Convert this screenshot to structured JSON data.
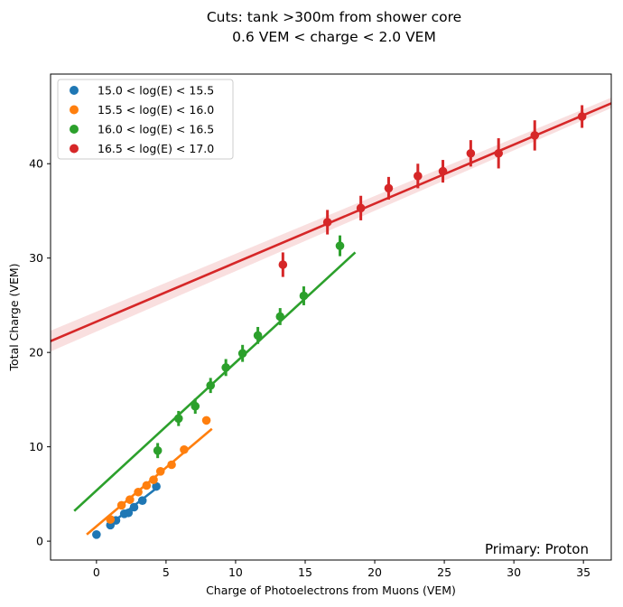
{
  "chart_data": {
    "type": "scatter",
    "title_lines": [
      "Cuts:  tank >300m from shower core",
      "0.6 VEM < charge < 2.0 VEM"
    ],
    "xlabel": "Charge of Photoelectrons from Muons (VEM)",
    "ylabel": "Total Charge (VEM)",
    "xlim": [
      -3.3,
      37
    ],
    "ylim": [
      -2,
      49.5
    ],
    "xticks": [
      0,
      5,
      10,
      15,
      20,
      25,
      30,
      35
    ],
    "yticks": [
      0,
      10,
      20,
      30,
      40
    ],
    "grid": false,
    "legend_position": "top-left",
    "annotation": "Primary: Proton",
    "series": [
      {
        "name": "15.0 < log(E) < 15.5",
        "color": "#1f77b4",
        "points": [
          {
            "x": 0.0,
            "y": 0.7
          },
          {
            "x": 1.0,
            "y": 1.7
          },
          {
            "x": 1.4,
            "y": 2.2
          },
          {
            "x": 2.0,
            "y": 2.9
          },
          {
            "x": 2.3,
            "y": 3.0
          },
          {
            "x": 2.7,
            "y": 3.6
          },
          {
            "x": 3.3,
            "y": 4.3
          },
          {
            "x": 4.3,
            "y": 5.8
          }
        ],
        "fit": {
          "x": [
            0.9,
            4.3
          ],
          "y": [
            1.7,
            5.6
          ]
        }
      },
      {
        "name": "15.5 < log(E) < 16.0",
        "color": "#ff7f0e",
        "points": [
          {
            "x": 1.0,
            "y": 2.3
          },
          {
            "x": 1.8,
            "y": 3.8
          },
          {
            "x": 2.4,
            "y": 4.4
          },
          {
            "x": 3.0,
            "y": 5.2
          },
          {
            "x": 3.6,
            "y": 5.9
          },
          {
            "x": 4.1,
            "y": 6.5
          },
          {
            "x": 4.6,
            "y": 7.4
          },
          {
            "x": 5.4,
            "y": 8.1
          },
          {
            "x": 6.3,
            "y": 9.7
          },
          {
            "x": 7.9,
            "y": 12.8
          }
        ],
        "fit": {
          "x": [
            -0.7,
            8.3
          ],
          "y": [
            0.7,
            11.9
          ]
        }
      },
      {
        "name": "16.0 < log(E) < 16.5",
        "color": "#2ca02c",
        "points": [
          {
            "x": 4.4,
            "y": 9.6,
            "err": 0.8
          },
          {
            "x": 5.9,
            "y": 13.0,
            "err": 0.8
          },
          {
            "x": 7.1,
            "y": 14.3,
            "err": 0.8
          },
          {
            "x": 8.2,
            "y": 16.5,
            "err": 0.8
          },
          {
            "x": 9.3,
            "y": 18.4,
            "err": 0.9
          },
          {
            "x": 10.5,
            "y": 19.9,
            "err": 0.9
          },
          {
            "x": 11.6,
            "y": 21.8,
            "err": 0.9
          },
          {
            "x": 13.2,
            "y": 23.8,
            "err": 0.9
          },
          {
            "x": 14.9,
            "y": 26.0,
            "err": 1.0
          },
          {
            "x": 17.5,
            "y": 31.3,
            "err": 1.1
          }
        ],
        "fit": {
          "x": [
            -1.6,
            18.6
          ],
          "y": [
            3.2,
            30.6
          ]
        }
      },
      {
        "name": "16.5 < log(E) < 17.0",
        "color": "#d62728",
        "points": [
          {
            "x": 13.4,
            "y": 29.3,
            "err": 1.3
          },
          {
            "x": 16.6,
            "y": 33.8,
            "err": 1.3
          },
          {
            "x": 19.0,
            "y": 35.3,
            "err": 1.3
          },
          {
            "x": 21.0,
            "y": 37.4,
            "err": 1.2
          },
          {
            "x": 23.1,
            "y": 38.7,
            "err": 1.3
          },
          {
            "x": 24.9,
            "y": 39.2,
            "err": 1.2
          },
          {
            "x": 26.9,
            "y": 41.1,
            "err": 1.4
          },
          {
            "x": 28.9,
            "y": 41.1,
            "err": 1.6
          },
          {
            "x": 31.5,
            "y": 43.0,
            "err": 1.6
          },
          {
            "x": 34.9,
            "y": 45.0,
            "err": 1.2
          }
        ],
        "fit": {
          "x": [
            -3.3,
            37.0
          ],
          "y": [
            21.2,
            46.4
          ]
        },
        "band": {
          "lower": [
            20.1,
            45.9
          ],
          "upper": [
            22.3,
            47.0
          ]
        }
      }
    ]
  }
}
